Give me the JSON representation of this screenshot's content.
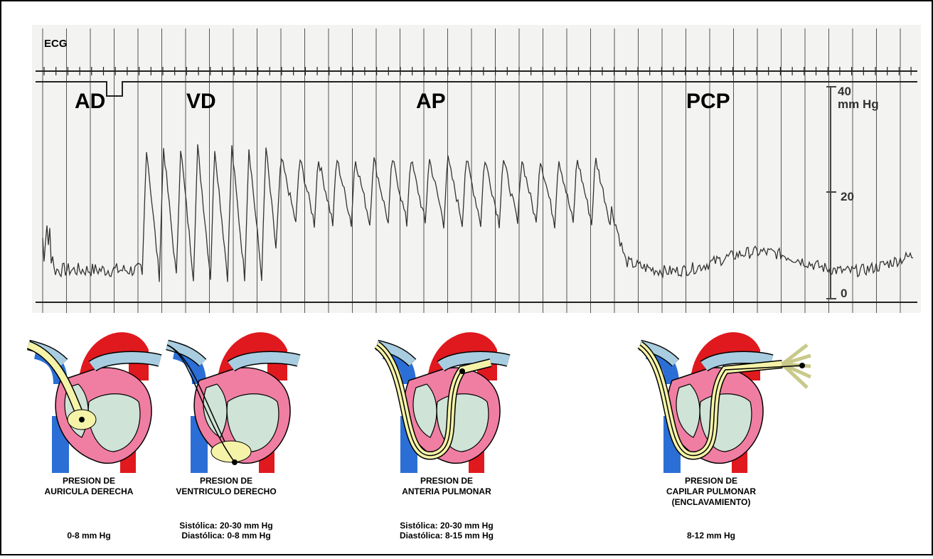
{
  "trace": {
    "ecg_label": "ECG",
    "stages": [
      "AD",
      "VD",
      "AP",
      "PCP"
    ],
    "scale": {
      "top": 40,
      "unit": "mm Hg",
      "mid": 20,
      "bottom": 0
    }
  },
  "panels": [
    {
      "title_lines": [
        "PRESION DE",
        "AURICULA DERECHA"
      ],
      "ranges": [
        "0-8 mm Hg"
      ]
    },
    {
      "title_lines": [
        "PRESION DE",
        "VENTRICULO DERECHO"
      ],
      "ranges": [
        "Sistólica: 20-30 mm Hg",
        "Diastólica: 0-8 mm Hg"
      ]
    },
    {
      "title_lines": [
        "PRESION DE",
        "ANTERIA PULMONAR"
      ],
      "ranges": [
        "Sistólica: 20-30 mm Hg",
        "Diastólica: 8-15 mm Hg"
      ]
    },
    {
      "title_lines": [
        "PRESION DE",
        "CAPILAR PULMONAR",
        "(ENCLAVAMIENTO)"
      ],
      "ranges": [
        "8-12 mm Hg"
      ]
    }
  ]
}
